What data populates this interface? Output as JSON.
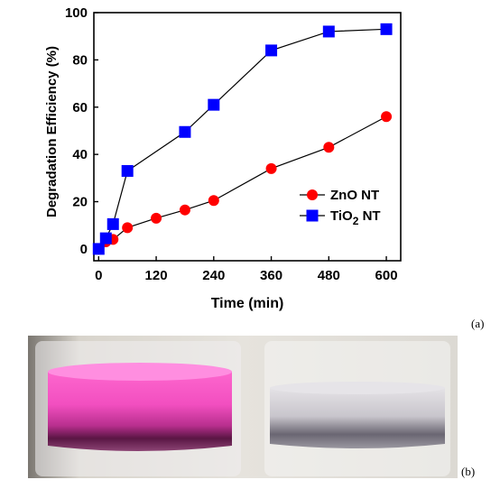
{
  "chart_data": {
    "type": "line",
    "xlabel": "Time (min)",
    "ylabel": "Degradation Efficiency (%)",
    "xlim": [
      -10,
      630
    ],
    "ylim": [
      -5,
      100
    ],
    "xticks": [
      0,
      120,
      240,
      360,
      480,
      600
    ],
    "yticks": [
      0,
      20,
      40,
      60,
      80,
      100
    ],
    "grid": false,
    "legend_position": "center-right",
    "series": [
      {
        "name_parts": [
          "ZnO NT"
        ],
        "marker": "circle",
        "color": "#ff0000",
        "x": [
          0,
          15,
          30,
          60,
          120,
          180,
          240,
          360,
          480,
          600
        ],
        "y": [
          0,
          3,
          4,
          9,
          13,
          16.5,
          20.5,
          34,
          43,
          56
        ]
      },
      {
        "name_parts": [
          "TiO",
          "2",
          " NT"
        ],
        "marker": "square",
        "color": "#0000ff",
        "x": [
          0,
          15,
          30,
          60,
          180,
          240,
          360,
          480,
          600
        ],
        "y": [
          0,
          4.5,
          10.5,
          33,
          49.5,
          61,
          84,
          92,
          93
        ]
      }
    ]
  },
  "panel_labels": {
    "a": "(a)",
    "b": "(b)"
  }
}
